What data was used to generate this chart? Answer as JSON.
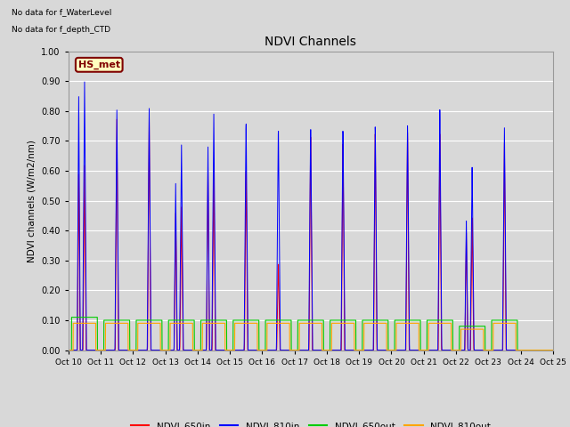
{
  "title": "NDVI Channels",
  "ylabel": "NDVI channels (W/m2/nm)",
  "ylim": [
    0.0,
    1.0
  ],
  "yticks": [
    0.0,
    0.1,
    0.2,
    0.3,
    0.4,
    0.5,
    0.6,
    0.7,
    0.8,
    0.9,
    1.0
  ],
  "xtick_labels": [
    "Oct 10",
    "Oct 11",
    "Oct 12",
    "Oct 13",
    "Oct 14",
    "Oct 15",
    "Oct 16",
    "Oct 17",
    "Oct 18",
    "Oct 19",
    "Oct 20",
    "Oct 21",
    "Oct 22",
    "Oct 23",
    "Oct 24",
    "Oct 25"
  ],
  "text_lines": [
    "No data for f_WaterLevel",
    "No data for f_depth_CTD"
  ],
  "legend_label": "HS_met",
  "legend_facecolor": "#FFFFC0",
  "legend_edgecolor": "#800000",
  "legend_textcolor": "#800000",
  "colors": {
    "NDVI_650in": "#FF0000",
    "NDVI_810in": "#0000FF",
    "NDVI_650out": "#00CC00",
    "NDVI_810out": "#FFA500"
  },
  "background_color": "#D8D8D8",
  "plot_bg_color": "#D8D8D8",
  "grid_color": "#FFFFFF",
  "figsize": [
    6.4,
    4.8
  ],
  "dpi": 100,
  "spike_810in": [
    0.9,
    0.81,
    0.82,
    0.7,
    0.81,
    0.78,
    0.76,
    0.77,
    0.76,
    0.77,
    0.77,
    0.82,
    0.62,
    0.75
  ],
  "spike_650in": [
    0.62,
    0.78,
    0.8,
    0.49,
    0.64,
    0.62,
    0.3,
    0.75,
    0.72,
    0.75,
    0.75,
    0.74,
    0.45,
    0.7
  ],
  "spike_650out": [
    0.11,
    0.1,
    0.1,
    0.1,
    0.1,
    0.1,
    0.1,
    0.1,
    0.1,
    0.1,
    0.1,
    0.1,
    0.08,
    0.1
  ],
  "spike_810out": [
    0.09,
    0.09,
    0.09,
    0.09,
    0.09,
    0.09,
    0.09,
    0.09,
    0.09,
    0.09,
    0.09,
    0.09,
    0.07,
    0.09
  ],
  "spike_810in_secondary": [
    0.85,
    0.0,
    0.0,
    0.57,
    0.7,
    0.0,
    0.0,
    0.0,
    0.0,
    0.0,
    0.0,
    0.0,
    0.44,
    0.0
  ],
  "spike_650in_secondary": [
    0.59,
    0.0,
    0.0,
    0.47,
    0.63,
    0.0,
    0.0,
    0.0,
    0.0,
    0.0,
    0.0,
    0.0,
    0.4,
    0.0
  ]
}
